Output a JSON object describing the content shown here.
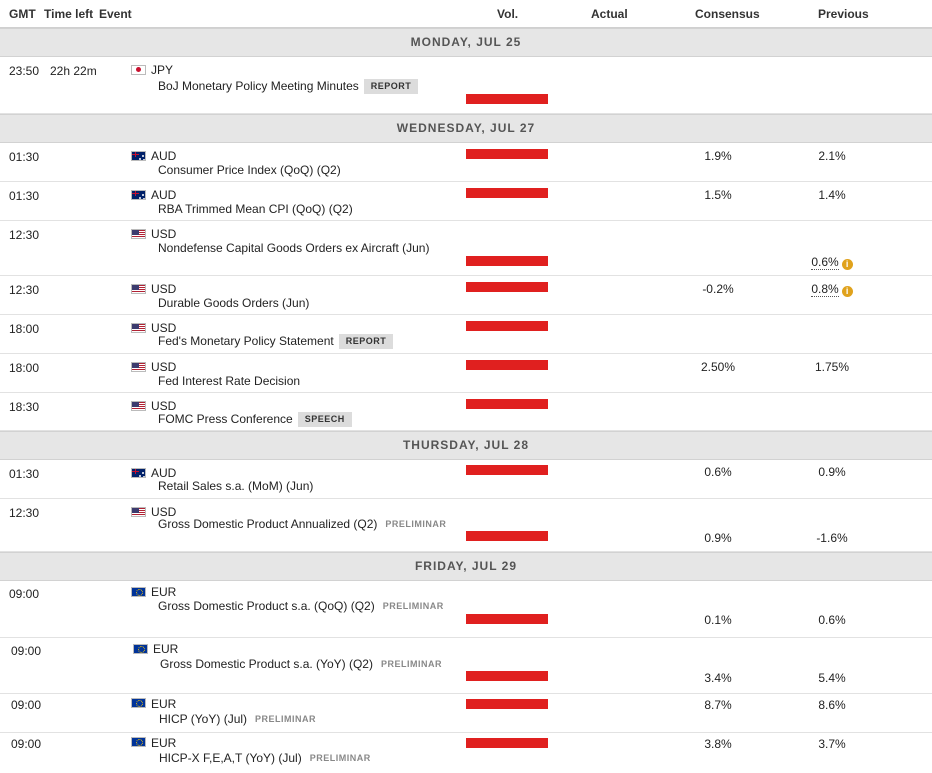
{
  "header": {
    "gmt": "GMT",
    "time_left": "Time left",
    "event": "Event",
    "vol": "Vol.",
    "actual": "Actual",
    "consensus": "Consensus",
    "previous": "Previous"
  },
  "days": [
    "MONDAY, JUL 25",
    "WEDNESDAY, JUL 27",
    "THURSDAY, JUL 28",
    "FRIDAY, JUL 29"
  ],
  "events": [
    {
      "time": "23:50",
      "time_left": "22h 22m",
      "flag": "jp-flag-icon",
      "currency": "JPY",
      "name": "BoJ Monetary Policy Meeting Minutes",
      "tag": "REPORT",
      "volatility": "high",
      "actual": "",
      "consensus": "",
      "previous": ""
    },
    {
      "time": "01:30",
      "time_left": "",
      "flag": "au-flag-icon",
      "currency": "AUD",
      "name": "Consumer Price Index (QoQ) (Q2)",
      "tag": "",
      "volatility": "high",
      "actual": "",
      "consensus": "1.9%",
      "previous": "2.1%"
    },
    {
      "time": "01:30",
      "time_left": "",
      "flag": "au-flag-icon",
      "currency": "AUD",
      "name": "RBA Trimmed Mean CPI (QoQ) (Q2)",
      "tag": "",
      "volatility": "high",
      "actual": "",
      "consensus": "1.5%",
      "previous": "1.4%"
    },
    {
      "time": "12:30",
      "time_left": "",
      "flag": "us-flag-icon",
      "currency": "USD",
      "name": "Nondefense Capital Goods Orders ex Aircraft (Jun)",
      "tag": "",
      "volatility": "high",
      "actual": "",
      "consensus": "",
      "previous": "0.6%"
    },
    {
      "time": "12:30",
      "time_left": "",
      "flag": "us-flag-icon",
      "currency": "USD",
      "name": "Durable Goods Orders (Jun)",
      "tag": "",
      "volatility": "high",
      "actual": "",
      "consensus": "-0.2%",
      "previous": "0.8%"
    },
    {
      "time": "18:00",
      "time_left": "",
      "flag": "us-flag-icon",
      "currency": "USD",
      "name": "Fed's Monetary Policy Statement",
      "tag": "REPORT",
      "volatility": "high",
      "actual": "",
      "consensus": "",
      "previous": ""
    },
    {
      "time": "18:00",
      "time_left": "",
      "flag": "us-flag-icon",
      "currency": "USD",
      "name": "Fed Interest Rate Decision",
      "tag": "",
      "volatility": "high",
      "actual": "",
      "consensus": "2.50%",
      "previous": "1.75%"
    },
    {
      "time": "18:30",
      "time_left": "",
      "flag": "us-flag-icon",
      "currency": "USD",
      "name": "FOMC Press Conference",
      "tag": "SPEECH",
      "volatility": "high",
      "actual": "",
      "consensus": "",
      "previous": ""
    },
    {
      "time": "01:30",
      "time_left": "",
      "flag": "au-flag-icon",
      "currency": "AUD",
      "name": "Retail Sales s.a. (MoM) (Jun)",
      "tag": "",
      "volatility": "high",
      "actual": "",
      "consensus": "0.6%",
      "previous": "0.9%"
    },
    {
      "time": "12:30",
      "time_left": "",
      "flag": "us-flag-icon",
      "currency": "USD",
      "name": "Gross Domestic Product Annualized (Q2)",
      "tag": "PRELIMINAR",
      "volatility": "high",
      "actual": "",
      "consensus": "0.9%",
      "previous": "-1.6%"
    },
    {
      "time": "09:00",
      "time_left": "",
      "flag": "eu-flag-icon",
      "currency": "EUR",
      "name": "Gross Domestic Product s.a. (QoQ) (Q2)",
      "tag": "PRELIMINAR",
      "volatility": "high",
      "actual": "",
      "consensus": "0.1%",
      "previous": "0.6%"
    },
    {
      "time": "09:00",
      "time_left": "",
      "flag": "eu-flag-icon",
      "currency": "EUR",
      "name": "Gross Domestic Product s.a. (YoY) (Q2)",
      "tag": "PRELIMINAR",
      "volatility": "high",
      "actual": "",
      "consensus": "3.4%",
      "previous": "5.4%"
    },
    {
      "time": "09:00",
      "time_left": "",
      "flag": "eu-flag-icon",
      "currency": "EUR",
      "name": "HICP (YoY) (Jul)",
      "tag": "PRELIMINAR",
      "volatility": "high",
      "actual": "",
      "consensus": "8.7%",
      "previous": "8.6%"
    },
    {
      "time": "09:00",
      "time_left": "",
      "flag": "eu-flag-icon",
      "currency": "EUR",
      "name": "HICP-X F,E,A,T (YoY) (Jul)",
      "tag": "PRELIMINAR",
      "volatility": "high",
      "actual": "",
      "consensus": "3.8%",
      "previous": "3.7%"
    }
  ],
  "colors": {
    "volatility_bar": "#e0201f",
    "day_band": "#e6e6e6",
    "revision_icon": "#e0a21c"
  },
  "icons": {
    "revision": "info-icon"
  }
}
